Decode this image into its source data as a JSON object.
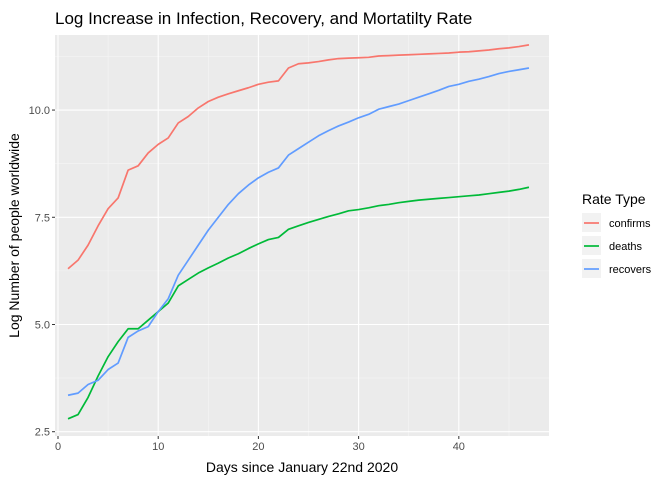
{
  "chart_data": {
    "type": "line",
    "title": "Log Increase in Infection, Recovery, and Mortatilty Rate",
    "xlabel": "Days since January 22nd 2020",
    "ylabel": "Log Number of people worldwide",
    "xlim": [
      -0.3,
      49
    ],
    "ylim": [
      2.4,
      11.75
    ],
    "x_ticks": [
      0,
      10,
      20,
      30,
      40
    ],
    "x_tick_labels": [
      "0",
      "10",
      "20",
      "30",
      "40"
    ],
    "y_ticks": [
      2.5,
      5.0,
      7.5,
      10.0
    ],
    "y_tick_labels": [
      "2.5",
      "5.0",
      "7.5",
      "10.0"
    ],
    "grid": true,
    "legend_title": "Rate Type",
    "legend_position": "right",
    "series": [
      {
        "name": "confirms",
        "color": "#F8766D",
        "x": [
          1,
          2,
          3,
          4,
          5,
          6,
          7,
          8,
          9,
          10,
          11,
          12,
          13,
          14,
          15,
          16,
          17,
          18,
          19,
          20,
          21,
          22,
          23,
          24,
          25,
          26,
          27,
          28,
          29,
          30,
          31,
          32,
          33,
          34,
          35,
          36,
          37,
          38,
          39,
          40,
          41,
          42,
          43,
          44,
          45,
          46,
          47
        ],
        "y": [
          6.3,
          6.5,
          6.85,
          7.3,
          7.7,
          7.95,
          8.6,
          8.7,
          9.0,
          9.2,
          9.35,
          9.7,
          9.85,
          10.05,
          10.2,
          10.3,
          10.38,
          10.45,
          10.52,
          10.6,
          10.65,
          10.68,
          10.98,
          11.08,
          11.1,
          11.13,
          11.17,
          11.2,
          11.21,
          11.22,
          11.23,
          11.26,
          11.27,
          11.28,
          11.29,
          11.3,
          11.31,
          11.32,
          11.33,
          11.35,
          11.36,
          11.38,
          11.4,
          11.43,
          11.45,
          11.48,
          11.52
        ]
      },
      {
        "name": "deaths",
        "color": "#00BA38",
        "x": [
          1,
          2,
          3,
          4,
          5,
          6,
          7,
          8,
          9,
          10,
          11,
          12,
          13,
          14,
          15,
          16,
          17,
          18,
          19,
          20,
          21,
          22,
          23,
          24,
          25,
          26,
          27,
          28,
          29,
          30,
          31,
          32,
          33,
          34,
          35,
          36,
          37,
          38,
          39,
          40,
          41,
          42,
          43,
          44,
          45,
          46,
          47
        ],
        "y": [
          2.8,
          2.9,
          3.3,
          3.8,
          4.25,
          4.6,
          4.9,
          4.9,
          5.1,
          5.3,
          5.5,
          5.9,
          6.05,
          6.2,
          6.32,
          6.43,
          6.55,
          6.65,
          6.77,
          6.88,
          6.98,
          7.03,
          7.22,
          7.3,
          7.38,
          7.45,
          7.52,
          7.58,
          7.65,
          7.68,
          7.72,
          7.77,
          7.8,
          7.84,
          7.87,
          7.9,
          7.92,
          7.94,
          7.96,
          7.98,
          8.0,
          8.02,
          8.05,
          8.08,
          8.11,
          8.15,
          8.2
        ]
      },
      {
        "name": "recovers",
        "color": "#619CFF",
        "x": [
          1,
          2,
          3,
          4,
          5,
          6,
          7,
          8,
          9,
          10,
          11,
          12,
          13,
          14,
          15,
          16,
          17,
          18,
          19,
          20,
          21,
          22,
          23,
          24,
          25,
          26,
          27,
          28,
          29,
          30,
          31,
          32,
          33,
          34,
          35,
          36,
          37,
          38,
          39,
          40,
          41,
          42,
          43,
          44,
          45,
          46,
          47
        ],
        "y": [
          3.35,
          3.4,
          3.6,
          3.7,
          3.95,
          4.1,
          4.7,
          4.85,
          4.95,
          5.3,
          5.6,
          6.15,
          6.5,
          6.85,
          7.2,
          7.5,
          7.8,
          8.05,
          8.25,
          8.42,
          8.55,
          8.65,
          8.95,
          9.1,
          9.25,
          9.4,
          9.52,
          9.63,
          9.72,
          9.82,
          9.9,
          10.02,
          10.08,
          10.14,
          10.22,
          10.3,
          10.38,
          10.46,
          10.55,
          10.6,
          10.67,
          10.72,
          10.78,
          10.85,
          10.9,
          10.94,
          10.98
        ]
      }
    ]
  }
}
